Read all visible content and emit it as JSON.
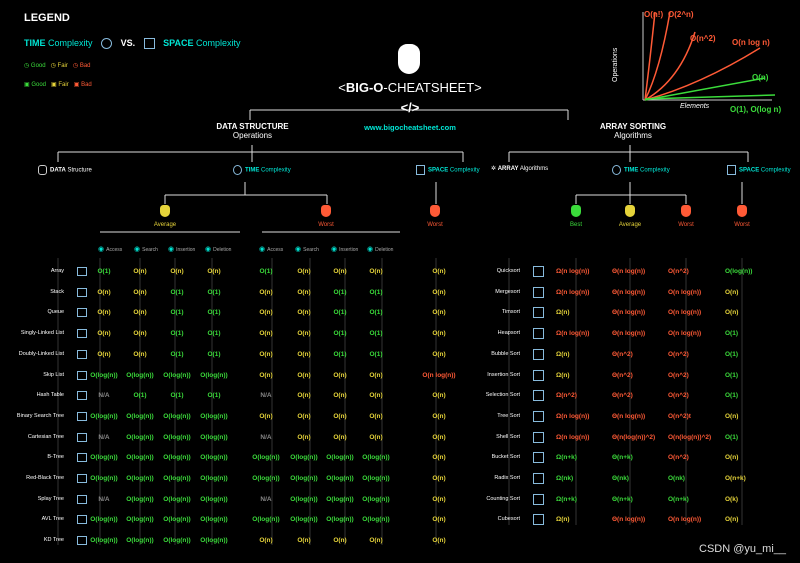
{
  "legend": {
    "title": "LEGEND",
    "time": "TIME",
    "time_rest": "Complexity",
    "vs": "VS.",
    "space": "SPACE",
    "space_rest": "Complexity",
    "good": "Good",
    "fair": "Fair",
    "bad": "Bad"
  },
  "title": {
    "pre": "<",
    "big": "BIG-O",
    "rest": "-CHEATSHEET>",
    "code": "</>",
    "url": "www.bigocheatsheet.com"
  },
  "graph": {
    "ylabel": "Operations",
    "xlabel": "Elements",
    "labels": [
      "O(n!)",
      "O(2^n)",
      "O(n^2)",
      "O(n log n)",
      "O(n)",
      "O(1), O(log n)"
    ]
  },
  "ds": {
    "title": "DATA STRUCTURE",
    "subtitle": "Operations",
    "data": "DATA",
    "data_sub": "Structure",
    "time": "TIME",
    "time_sub": "Complexity",
    "space": "SPACE",
    "space_sub": "Complexity",
    "average": "Average",
    "worst": "Worst",
    "space_worst": "Worst",
    "ops": [
      "Access",
      "Search",
      "Insertion",
      "Deletion"
    ],
    "rows": [
      {
        "name": "Array",
        "avg": [
          "O(1)",
          "O(n)",
          "O(n)",
          "O(n)"
        ],
        "worst": [
          "O(1)",
          "O(n)",
          "O(n)",
          "O(n)"
        ],
        "space": "O(n)",
        "ac": [
          "g",
          "y",
          "y",
          "y"
        ],
        "wc": [
          "g",
          "y",
          "y",
          "y"
        ],
        "sc": "y"
      },
      {
        "name": "Stack",
        "avg": [
          "O(n)",
          "O(n)",
          "O(1)",
          "O(1)"
        ],
        "worst": [
          "O(n)",
          "O(n)",
          "O(1)",
          "O(1)"
        ],
        "space": "O(n)",
        "ac": [
          "y",
          "y",
          "g",
          "g"
        ],
        "wc": [
          "y",
          "y",
          "g",
          "g"
        ],
        "sc": "y"
      },
      {
        "name": "Queue",
        "avg": [
          "O(n)",
          "O(n)",
          "O(1)",
          "O(1)"
        ],
        "worst": [
          "O(n)",
          "O(n)",
          "O(1)",
          "O(1)"
        ],
        "space": "O(n)",
        "ac": [
          "y",
          "y",
          "g",
          "g"
        ],
        "wc": [
          "y",
          "y",
          "g",
          "g"
        ],
        "sc": "y"
      },
      {
        "name": "Singly-Linked List",
        "avg": [
          "O(n)",
          "O(n)",
          "O(1)",
          "O(1)"
        ],
        "worst": [
          "O(n)",
          "O(n)",
          "O(1)",
          "O(1)"
        ],
        "space": "O(n)",
        "ac": [
          "y",
          "y",
          "g",
          "g"
        ],
        "wc": [
          "y",
          "y",
          "g",
          "g"
        ],
        "sc": "y"
      },
      {
        "name": "Doubly-Linked List",
        "avg": [
          "O(n)",
          "O(n)",
          "O(1)",
          "O(1)"
        ],
        "worst": [
          "O(n)",
          "O(n)",
          "O(1)",
          "O(1)"
        ],
        "space": "O(n)",
        "ac": [
          "y",
          "y",
          "g",
          "g"
        ],
        "wc": [
          "y",
          "y",
          "g",
          "g"
        ],
        "sc": "y"
      },
      {
        "name": "Skip List",
        "avg": [
          "O(log(n))",
          "O(log(n))",
          "O(log(n))",
          "O(log(n))"
        ],
        "worst": [
          "O(n)",
          "O(n)",
          "O(n)",
          "O(n)"
        ],
        "space": "O(n log(n))",
        "ac": [
          "g",
          "g",
          "g",
          "g"
        ],
        "wc": [
          "y",
          "y",
          "y",
          "y"
        ],
        "sc": "r"
      },
      {
        "name": "Hash Table",
        "avg": [
          "N/A",
          "O(1)",
          "O(1)",
          "O(1)"
        ],
        "worst": [
          "N/A",
          "O(n)",
          "O(n)",
          "O(n)"
        ],
        "space": "O(n)",
        "ac": [
          "n",
          "g",
          "g",
          "g"
        ],
        "wc": [
          "n",
          "y",
          "y",
          "y"
        ],
        "sc": "y"
      },
      {
        "name": "Binary Search Tree",
        "avg": [
          "O(log(n))",
          "O(log(n))",
          "O(log(n))",
          "O(log(n))"
        ],
        "worst": [
          "O(n)",
          "O(n)",
          "O(n)",
          "O(n)"
        ],
        "space": "O(n)",
        "ac": [
          "g",
          "g",
          "g",
          "g"
        ],
        "wc": [
          "y",
          "y",
          "y",
          "y"
        ],
        "sc": "y"
      },
      {
        "name": "Cartesian Tree",
        "avg": [
          "N/A",
          "O(log(n))",
          "O(log(n))",
          "O(log(n))"
        ],
        "worst": [
          "N/A",
          "O(n)",
          "O(n)",
          "O(n)"
        ],
        "space": "O(n)",
        "ac": [
          "n",
          "g",
          "g",
          "g"
        ],
        "wc": [
          "n",
          "y",
          "y",
          "y"
        ],
        "sc": "y"
      },
      {
        "name": "B-Tree",
        "avg": [
          "O(log(n))",
          "O(log(n))",
          "O(log(n))",
          "O(log(n))"
        ],
        "worst": [
          "O(log(n))",
          "O(log(n))",
          "O(log(n))",
          "O(log(n))"
        ],
        "space": "O(n)",
        "ac": [
          "g",
          "g",
          "g",
          "g"
        ],
        "wc": [
          "g",
          "g",
          "g",
          "g"
        ],
        "sc": "y"
      },
      {
        "name": "Red-Black Tree",
        "avg": [
          "O(log(n))",
          "O(log(n))",
          "O(log(n))",
          "O(log(n))"
        ],
        "worst": [
          "O(log(n))",
          "O(log(n))",
          "O(log(n))",
          "O(log(n))"
        ],
        "space": "O(n)",
        "ac": [
          "g",
          "g",
          "g",
          "g"
        ],
        "wc": [
          "g",
          "g",
          "g",
          "g"
        ],
        "sc": "y"
      },
      {
        "name": "Splay Tree",
        "avg": [
          "N/A",
          "O(log(n))",
          "O(log(n))",
          "O(log(n))"
        ],
        "worst": [
          "N/A",
          "O(log(n))",
          "O(log(n))",
          "O(log(n))"
        ],
        "space": "O(n)",
        "ac": [
          "n",
          "g",
          "g",
          "g"
        ],
        "wc": [
          "n",
          "g",
          "g",
          "g"
        ],
        "sc": "y"
      },
      {
        "name": "AVL Tree",
        "avg": [
          "O(log(n))",
          "O(log(n))",
          "O(log(n))",
          "O(log(n))"
        ],
        "worst": [
          "O(log(n))",
          "O(log(n))",
          "O(log(n))",
          "O(log(n))"
        ],
        "space": "O(n)",
        "ac": [
          "g",
          "g",
          "g",
          "g"
        ],
        "wc": [
          "g",
          "g",
          "g",
          "g"
        ],
        "sc": "y"
      },
      {
        "name": "KD Tree",
        "avg": [
          "O(log(n))",
          "O(log(n))",
          "O(log(n))",
          "O(log(n))"
        ],
        "worst": [
          "O(n)",
          "O(n)",
          "O(n)",
          "O(n)"
        ],
        "space": "O(n)",
        "ac": [
          "g",
          "g",
          "g",
          "g"
        ],
        "wc": [
          "y",
          "y",
          "y",
          "y"
        ],
        "sc": "y"
      }
    ]
  },
  "as": {
    "title": "ARRAY SORTING",
    "subtitle": "Algorithms",
    "array": "ARRAY",
    "array_sub": "Algorithms",
    "time": "TIME",
    "time_sub": "Complexity",
    "space": "SPACE",
    "space_sub": "Complexity",
    "best": "Best",
    "average": "Average",
    "worst": "Worst",
    "space_worst": "Worst",
    "rows": [
      {
        "name": "Quicksort",
        "v": [
          "Ω(n log(n))",
          "Θ(n log(n))",
          "O(n^2)",
          "O(log(n))"
        ],
        "c": [
          "r",
          "r",
          "r",
          "g"
        ]
      },
      {
        "name": "Mergesort",
        "v": [
          "Ω(n log(n))",
          "Θ(n log(n))",
          "O(n log(n))",
          "O(n)"
        ],
        "c": [
          "r",
          "r",
          "r",
          "y"
        ]
      },
      {
        "name": "Timsort",
        "v": [
          "Ω(n)",
          "Θ(n log(n))",
          "O(n log(n))",
          "O(n)"
        ],
        "c": [
          "y",
          "r",
          "r",
          "y"
        ]
      },
      {
        "name": "Heapsort",
        "v": [
          "Ω(n log(n))",
          "Θ(n log(n))",
          "O(n log(n))",
          "O(1)"
        ],
        "c": [
          "r",
          "r",
          "r",
          "g"
        ]
      },
      {
        "name": "Bubble Sort",
        "v": [
          "Ω(n)",
          "Θ(n^2)",
          "O(n^2)",
          "O(1)"
        ],
        "c": [
          "y",
          "r",
          "r",
          "g"
        ]
      },
      {
        "name": "Insertion Sort",
        "v": [
          "Ω(n)",
          "Θ(n^2)",
          "O(n^2)",
          "O(1)"
        ],
        "c": [
          "y",
          "r",
          "r",
          "g"
        ]
      },
      {
        "name": "Selection Sort",
        "v": [
          "Ω(n^2)",
          "Θ(n^2)",
          "O(n^2)",
          "O(1)"
        ],
        "c": [
          "r",
          "r",
          "r",
          "g"
        ]
      },
      {
        "name": "Tree Sort",
        "v": [
          "Ω(n log(n))",
          "Θ(n log(n))",
          "O(n^2)t",
          "O(n)"
        ],
        "c": [
          "r",
          "r",
          "r",
          "y"
        ]
      },
      {
        "name": "Shell Sort",
        "v": [
          "Ω(n log(n))",
          "Θ(n(log(n))^2)",
          "O(n(log(n))^2)",
          "O(1)"
        ],
        "c": [
          "r",
          "r",
          "r",
          "g"
        ]
      },
      {
        "name": "Bucket Sort",
        "v": [
          "Ω(n+k)",
          "Θ(n+k)",
          "O(n^2)",
          "O(n)"
        ],
        "c": [
          "g",
          "g",
          "r",
          "y"
        ]
      },
      {
        "name": "Radix Sort",
        "v": [
          "Ω(nk)",
          "Θ(nk)",
          "O(nk)",
          "O(n+k)"
        ],
        "c": [
          "g",
          "g",
          "g",
          "y"
        ]
      },
      {
        "name": "Counting Sort",
        "v": [
          "Ω(n+k)",
          "Θ(n+k)",
          "O(n+k)",
          "O(k)"
        ],
        "c": [
          "g",
          "g",
          "g",
          "y"
        ]
      },
      {
        "name": "Cubesort",
        "v": [
          "Ω(n)",
          "Θ(n log(n))",
          "O(n log(n))",
          "O(n)"
        ],
        "c": [
          "y",
          "r",
          "r",
          "y"
        ]
      }
    ]
  },
  "watermark": "CSDN @yu_mi__",
  "colors": {
    "good": "#3bdc3b",
    "fair": "#e6d43a",
    "bad": "#ff5a36",
    "accent": "#00e5d4"
  }
}
